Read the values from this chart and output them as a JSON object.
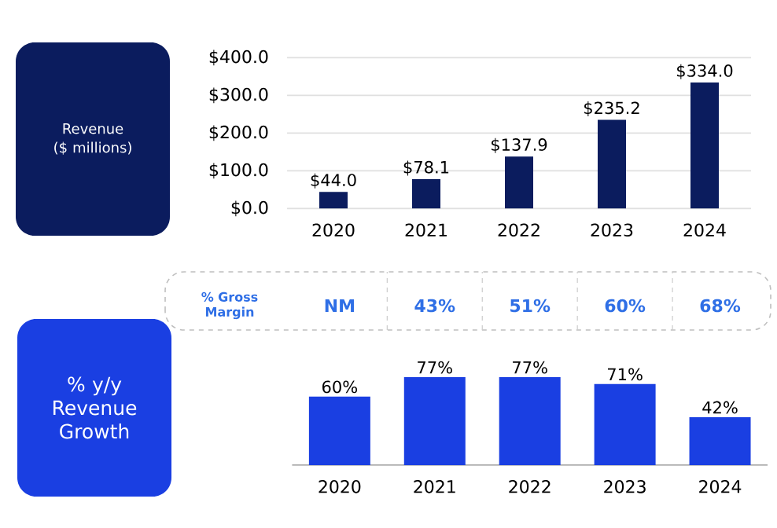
{
  "chart_data": [
    {
      "type": "bar",
      "ylabel": "Revenue ($ millions)",
      "categories": [
        "2020",
        "2021",
        "2022",
        "2023",
        "2024"
      ],
      "values": [
        44.0,
        78.1,
        137.9,
        235.2,
        334.0
      ],
      "value_labels": [
        "$44.0",
        "$78.1",
        "$137.9",
        "$235.2",
        "$334.0"
      ],
      "color": "#0b1c5e",
      "ylim": [
        0,
        400
      ],
      "yticks": [
        {
          "value": 0,
          "label": "$0.0"
        },
        {
          "value": 100,
          "label": "$100.0"
        },
        {
          "value": 200,
          "label": "$200.0"
        },
        {
          "value": 300,
          "label": "$300.0"
        },
        {
          "value": 400,
          "label": "$400.0"
        }
      ],
      "grid": "y"
    },
    {
      "type": "other",
      "title": "% Gross Margin",
      "color": "#2f6fe6",
      "annotations": [
        "NM",
        "43%",
        "51%",
        "60%",
        "68%"
      ]
    },
    {
      "type": "bar",
      "ylabel": "% y/y Revenue Growth",
      "categories": [
        "2020",
        "2021",
        "2022",
        "2023",
        "2024"
      ],
      "values": [
        60,
        77,
        77,
        71,
        42
      ],
      "value_labels": [
        "60%",
        "77%",
        "77%",
        "71%",
        "42%"
      ],
      "color": "#1a3fe2"
    }
  ]
}
